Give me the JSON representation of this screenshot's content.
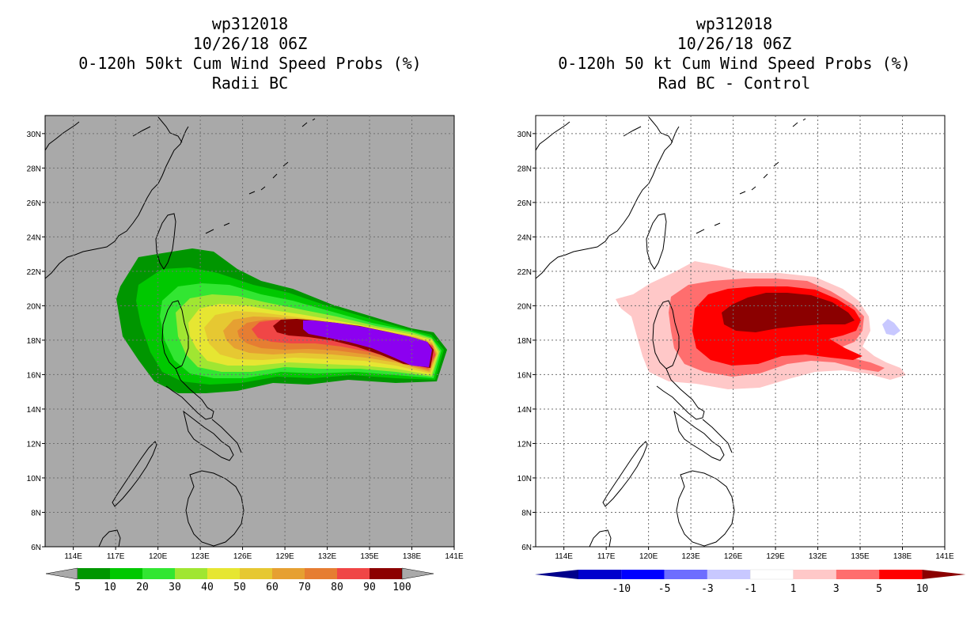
{
  "panels": [
    {
      "id": "left",
      "title_lines": [
        "wp312018",
        "10/26/18 06Z",
        "0-120h 50kt Cum Wind Speed Probs (%)",
        "Radii BC"
      ],
      "background": "#a9a9a9",
      "colorbar": {
        "labels": [
          "5",
          "10",
          "20",
          "30",
          "40",
          "50",
          "60",
          "70",
          "80",
          "90",
          "100"
        ],
        "colors": [
          "#009600",
          "#00c800",
          "#32e632",
          "#a0e632",
          "#e6e632",
          "#e6c832",
          "#e6a032",
          "#e67d32",
          "#f04646",
          "#8c0000",
          "#8c00f0"
        ],
        "end_color": "#a9a9a9"
      }
    },
    {
      "id": "right",
      "title_lines": [
        "wp312018",
        "10/26/18 06Z",
        "0-120h 50 kt Cum Wind Speed Probs (%)",
        "Rad BC - Control"
      ],
      "background": "#ffffff",
      "colorbar": {
        "labels": [
          "-10",
          "-5",
          "-3",
          "-1",
          "1",
          "3",
          "5",
          "10"
        ],
        "colors": [
          "#0000cd",
          "#0000ff",
          "#6e6eff",
          "#c8c8ff",
          "#ffffff",
          "#ffc8c8",
          "#ff6e6e",
          "#ff0000"
        ],
        "end_left": "#00008b",
        "end_right": "#8b0000"
      }
    }
  ],
  "axes": {
    "lon_labels": [
      "114E",
      "117E",
      "120E",
      "123E",
      "126E",
      "129E",
      "132E",
      "135E",
      "138E",
      "141E"
    ],
    "lat_labels": [
      "6N",
      "8N",
      "10N",
      "12N",
      "14N",
      "16N",
      "18N",
      "20N",
      "22N",
      "24N",
      "26N",
      "28N",
      "30N"
    ],
    "lon_range": [
      112,
      141
    ],
    "lat_range": [
      6,
      31
    ]
  }
}
